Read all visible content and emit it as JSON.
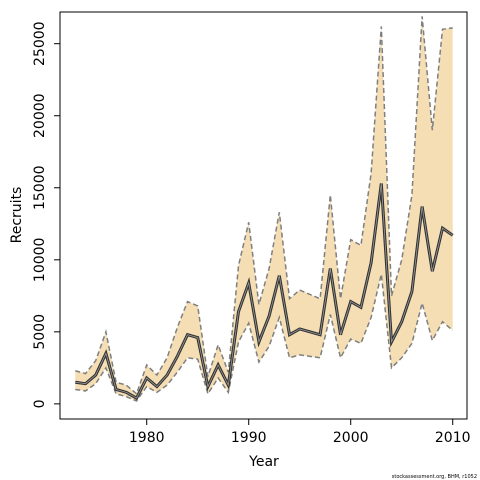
{
  "chart_data": {
    "type": "line-band",
    "x_label": "Year",
    "y_label": "Recruits",
    "footer": "stockassessment.org, BHM, r1052",
    "x": [
      1973,
      1974,
      1975,
      1976,
      1977,
      1978,
      1979,
      1980,
      1981,
      1982,
      1983,
      1984,
      1985,
      1986,
      1987,
      1988,
      1989,
      1990,
      1991,
      1992,
      1993,
      1994,
      1995,
      1996,
      1997,
      1998,
      1999,
      2000,
      2001,
      2002,
      2003,
      2004,
      2005,
      2006,
      2007,
      2008,
      2009,
      2010
    ],
    "values": [
      1500,
      1400,
      2000,
      3500,
      1000,
      800,
      400,
      1800,
      1200,
      2000,
      3300,
      4800,
      4600,
      1200,
      2700,
      1300,
      6400,
      8400,
      4300,
      6100,
      8900,
      4800,
      5200,
      5000,
      4800,
      9400,
      4800,
      7100,
      6700,
      9800,
      15300,
      4300,
      5700,
      7800,
      13700,
      9200,
      12200,
      11700
    ],
    "upper": [
      2300,
      2100,
      3000,
      5000,
      1500,
      1300,
      700,
      2700,
      2000,
      3200,
      5300,
      7100,
      6800,
      1900,
      4100,
      2200,
      9600,
      12600,
      6900,
      9400,
      13300,
      7300,
      7900,
      7600,
      7300,
      14500,
      7300,
      11400,
      11000,
      16000,
      26200,
      7500,
      10000,
      14500,
      26900,
      19000,
      26000,
      26100
    ],
    "lower": [
      1000,
      900,
      1400,
      2500,
      700,
      500,
      200,
      1200,
      800,
      1300,
      2200,
      3200,
      3100,
      700,
      1800,
      800,
      4300,
      5600,
      2900,
      4000,
      6000,
      3200,
      3400,
      3300,
      3200,
      6200,
      3200,
      4500,
      4200,
      6000,
      9000,
      2500,
      3200,
      4200,
      7000,
      4400,
      5700,
      5100
    ],
    "line_color": "#333333",
    "band_color": "#f5deb3",
    "band_edge_color": "#7f7f7f",
    "xlim": [
      1971.5,
      2011.4
    ],
    "ylim": [
      -1050,
      27200
    ],
    "xticks": [
      1980,
      1990,
      2000,
      2010
    ],
    "yticks": [
      0,
      5000,
      10000,
      15000,
      20000,
      25000
    ]
  }
}
